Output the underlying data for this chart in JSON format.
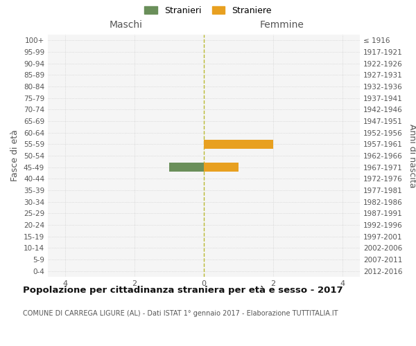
{
  "age_groups": [
    "100+",
    "95-99",
    "90-94",
    "85-89",
    "80-84",
    "75-79",
    "70-74",
    "65-69",
    "60-64",
    "55-59",
    "50-54",
    "45-49",
    "40-44",
    "35-39",
    "30-34",
    "25-29",
    "20-24",
    "15-19",
    "10-14",
    "5-9",
    "0-4"
  ],
  "birth_years": [
    "≤ 1916",
    "1917-1921",
    "1922-1926",
    "1927-1931",
    "1932-1936",
    "1937-1941",
    "1942-1946",
    "1947-1951",
    "1952-1956",
    "1957-1961",
    "1962-1966",
    "1967-1971",
    "1972-1976",
    "1977-1981",
    "1982-1986",
    "1987-1991",
    "1992-1996",
    "1997-2001",
    "2002-2006",
    "2007-2011",
    "2012-2016"
  ],
  "males": [
    0,
    0,
    0,
    0,
    0,
    0,
    0,
    0,
    0,
    0,
    0,
    1,
    0,
    0,
    0,
    0,
    0,
    0,
    0,
    0,
    0
  ],
  "females": [
    0,
    0,
    0,
    0,
    0,
    0,
    0,
    0,
    0,
    2,
    0,
    1,
    0,
    0,
    0,
    0,
    0,
    0,
    0,
    0,
    0
  ],
  "male_color": "#6a8f5a",
  "female_color": "#e8a020",
  "center_line_color": "#b8b830",
  "grid_color": "#c8c8c8",
  "bar_height": 0.75,
  "xlim": [
    -4.5,
    4.5
  ],
  "xticks": [
    -4,
    -2,
    0,
    2,
    4
  ],
  "xtick_labels": [
    "4",
    "2",
    "0",
    "2",
    "4"
  ],
  "title": "Popolazione per cittadinanza straniera per età e sesso - 2017",
  "subtitle": "COMUNE DI CARREGA LIGURE (AL) - Dati ISTAT 1° gennaio 2017 - Elaborazione TUTTITALIA.IT",
  "ylabel_left": "Fasce di età",
  "ylabel_right": "Anni di nascita",
  "maschi_label": "Maschi",
  "femmine_label": "Femmine",
  "legend_stranieri": "Stranieri",
  "legend_straniere": "Straniere",
  "background_color": "#ffffff",
  "plot_bg_color": "#f5f5f5"
}
